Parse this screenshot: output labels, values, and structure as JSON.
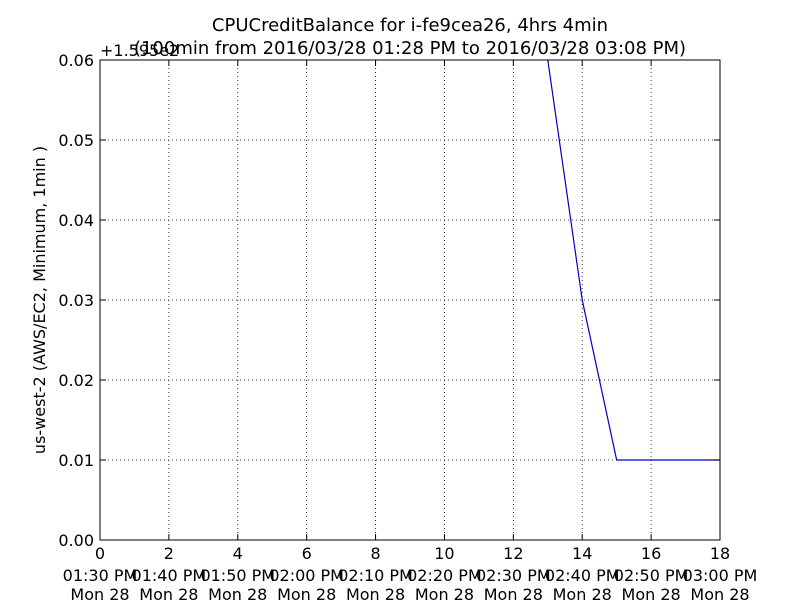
{
  "chart_data": {
    "type": "line",
    "title": "CPUCreditBalance for i-fe9cea26, 4hrs 4min",
    "subtitle": "(100min from 2016/03/28 01:28 PM to 2016/03/28 03:08 PM)",
    "offset_label": "+1.595e2",
    "ylabel": "us-west-2 (AWS/EC2, Minimum, 1min )",
    "xlabel": "",
    "xlim": [
      0,
      18
    ],
    "ylim": [
      0,
      0.06
    ],
    "grid": true,
    "line_color": "#0000cc",
    "x_ticks": [
      {
        "value": 0,
        "num": "0",
        "time": "01:30 PM",
        "day": "Mon 28"
      },
      {
        "value": 2,
        "num": "2",
        "time": "01:40 PM",
        "day": "Mon 28"
      },
      {
        "value": 4,
        "num": "4",
        "time": "01:50 PM",
        "day": "Mon 28"
      },
      {
        "value": 6,
        "num": "6",
        "time": "02:00 PM",
        "day": "Mon 28"
      },
      {
        "value": 8,
        "num": "8",
        "time": "02:10 PM",
        "day": "Mon 28"
      },
      {
        "value": 10,
        "num": "10",
        "time": "02:20 PM",
        "day": "Mon 28"
      },
      {
        "value": 12,
        "num": "12",
        "time": "02:30 PM",
        "day": "Mon 28"
      },
      {
        "value": 14,
        "num": "14",
        "time": "02:40 PM",
        "day": "Mon 28"
      },
      {
        "value": 16,
        "num": "16",
        "time": "02:50 PM",
        "day": "Mon 28"
      },
      {
        "value": 18,
        "num": "18",
        "time": "03:00 PM",
        "day": "Mon 28"
      }
    ],
    "y_ticks": [
      {
        "value": 0.0,
        "label": "0.00"
      },
      {
        "value": 0.01,
        "label": "0.01"
      },
      {
        "value": 0.02,
        "label": "0.02"
      },
      {
        "value": 0.03,
        "label": "0.03"
      },
      {
        "value": 0.04,
        "label": "0.04"
      },
      {
        "value": 0.05,
        "label": "0.05"
      },
      {
        "value": 0.06,
        "label": "0.06"
      }
    ],
    "series": [
      {
        "x": [
          13,
          14,
          15,
          16,
          17,
          18
        ],
        "y": [
          0.06,
          0.03,
          0.01,
          0.01,
          0.01,
          0.01
        ]
      }
    ]
  }
}
